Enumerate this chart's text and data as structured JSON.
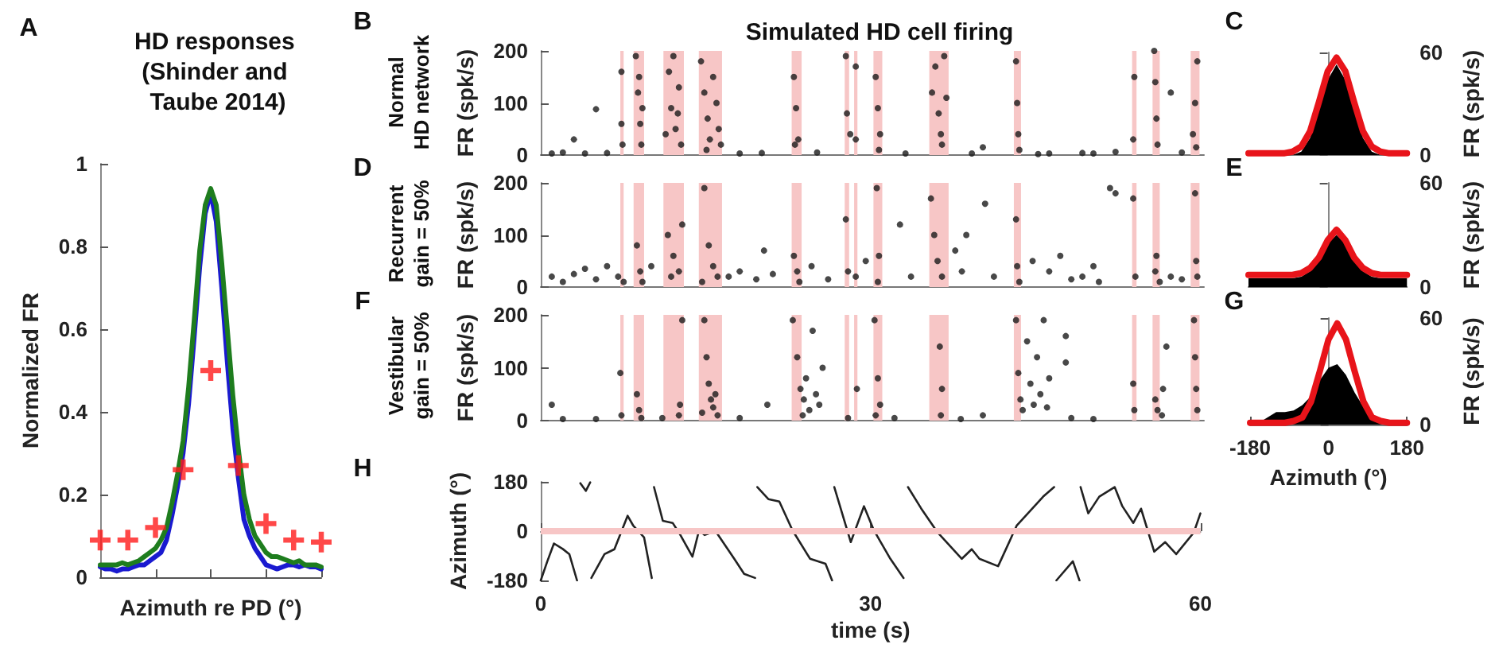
{
  "chart_data": [
    {
      "type": "line",
      "title": "HD responses (Shinder and Taube 2014)",
      "xlabel": "Azimuth re PD (°)",
      "ylabel": "Normalized FR",
      "annotations": [
        "A"
      ],
      "categories": [
        null,
        null,
        null,
        null,
        null,
        null,
        null,
        null,
        null,
        null,
        null,
        null,
        null,
        null,
        null,
        null,
        null,
        null,
        null,
        null,
        null,
        null,
        null,
        null,
        null,
        null,
        null,
        null,
        null,
        null,
        null,
        null,
        null,
        null,
        null,
        null,
        null,
        null,
        null,
        null,
        null
      ],
      "series": [
        {
          "color": "#1a1ad0",
          "values": [
            0.025,
            0.02,
            0.02,
            0.015,
            0.02,
            0.02,
            0.025,
            0.03,
            0.03,
            0.04,
            0.05,
            0.06,
            0.09,
            0.15,
            0.22,
            0.3,
            0.42,
            0.58,
            0.75,
            0.88,
            0.93,
            0.86,
            0.7,
            0.52,
            0.36,
            0.24,
            0.14,
            0.1,
            0.07,
            0.05,
            0.03,
            0.025,
            0.02,
            0.025,
            0.03,
            0.03,
            0.025,
            0.03,
            0.025,
            0.025,
            0.02
          ]
        },
        {
          "color": "#1e7d1e",
          "values": [
            0.03,
            0.03,
            0.03,
            0.03,
            0.035,
            0.03,
            0.035,
            0.04,
            0.05,
            0.06,
            0.07,
            0.09,
            0.12,
            0.18,
            0.25,
            0.33,
            0.46,
            0.62,
            0.79,
            0.9,
            0.94,
            0.9,
            0.76,
            0.6,
            0.44,
            0.31,
            0.2,
            0.14,
            0.1,
            0.08,
            0.06,
            0.05,
            0.05,
            0.045,
            0.04,
            0.035,
            0.04,
            0.03,
            0.03,
            0.03,
            0.025
          ]
        },
        {
          "type": "scatter",
          "marker": "cross",
          "color": "#ff1a1a",
          "values": [
            0.09,
            null,
            null,
            null,
            null,
            0.09,
            null,
            null,
            null,
            null,
            0.12,
            null,
            null,
            null,
            null,
            0.26,
            null,
            null,
            null,
            null,
            0.5,
            null,
            null,
            null,
            null,
            0.27,
            null,
            null,
            null,
            null,
            0.13,
            null,
            null,
            null,
            null,
            0.09,
            null,
            null,
            null,
            null,
            0.085
          ]
        }
      ],
      "ylim": [
        0,
        1
      ],
      "yticks": [
        0,
        0.2,
        0.4,
        0.6,
        0.8,
        1
      ],
      "tick_labels": "y",
      "marker": "none"
    },
    {
      "type": "scatter",
      "title": "Simulated HD cell firing",
      "ylabel": "FR (spk/s)",
      "annotations": [
        "B",
        "Normal\nHD network"
      ],
      "series": [
        {
          "color": "#1a1a1a",
          "x": [
            2,
            3,
            5,
            1,
            4,
            6,
            7.3,
            7.3,
            7.4,
            8.6,
            8.8,
            9.0,
            9.1,
            8.9,
            9.2,
            11.3,
            11.6,
            11.8,
            12.0,
            12.2,
            12.5,
            12.7,
            12.4,
            14.5,
            14.8,
            15.1,
            15.3,
            15.6,
            15.9,
            16.1,
            16.3,
            15.0,
            18,
            20,
            22.9,
            23.1,
            23.3,
            23.0,
            25,
            27.6,
            27.7,
            28.0,
            28.5,
            28.5,
            30.3,
            30.5,
            30.7,
            30.6,
            33,
            35.4,
            35.7,
            36.0,
            36.2,
            36.5,
            36.7,
            36.3,
            39,
            40,
            43.0,
            43.1,
            43.2,
            43.3,
            46,
            49,
            52,
            53.6,
            53.7,
            55.6,
            55.7,
            55.8,
            55.5,
            57,
            59.0,
            59.2,
            59.4,
            59.3,
            58,
            50,
            45
          ],
          "values": [
            5,
            30,
            88,
            3,
            3,
            4,
            60,
            160,
            20,
            190,
            120,
            60,
            20,
            150,
            90,
            40,
            160,
            90,
            190,
            50,
            130,
            20,
            80,
            180,
            120,
            70,
            30,
            150,
            100,
            50,
            20,
            10,
            3,
            4,
            150,
            90,
            30,
            20,
            5,
            190,
            80,
            40,
            170,
            30,
            150,
            90,
            40,
            10,
            3,
            120,
            170,
            80,
            40,
            190,
            110,
            20,
            3,
            15,
            180,
            100,
            40,
            10,
            3,
            4,
            6,
            30,
            150,
            140,
            70,
            20,
            200,
            120,
            40,
            100,
            180,
            15,
            5,
            3,
            2
          ]
        }
      ],
      "bands": [
        {
          "axis": "x",
          "from": 7.2,
          "to": 7.5,
          "color": "#f7c6c6"
        },
        {
          "axis": "x",
          "from": 8.4,
          "to": 9.35,
          "color": "#f7c6c6"
        },
        {
          "axis": "x",
          "from": 11.1,
          "to": 12.95,
          "color": "#f7c6c6"
        },
        {
          "axis": "x",
          "from": 14.3,
          "to": 16.4,
          "color": "#f7c6c6"
        },
        {
          "axis": "x",
          "from": 22.7,
          "to": 23.6,
          "color": "#f7c6c6"
        },
        {
          "axis": "x",
          "from": 27.5,
          "to": 27.9,
          "color": "#f7c6c6"
        },
        {
          "axis": "x",
          "from": 28.35,
          "to": 28.65,
          "color": "#f7c6c6"
        },
        {
          "axis": "x",
          "from": 30.1,
          "to": 30.9,
          "color": "#f7c6c6"
        },
        {
          "axis": "x",
          "from": 35.15,
          "to": 36.9,
          "color": "#f7c6c6"
        },
        {
          "axis": "x",
          "from": 42.8,
          "to": 43.45,
          "color": "#f7c6c6"
        },
        {
          "axis": "x",
          "from": 53.5,
          "to": 53.9,
          "color": "#f7c6c6"
        },
        {
          "axis": "x",
          "from": 55.35,
          "to": 56.0,
          "color": "#f7c6c6"
        },
        {
          "axis": "x",
          "from": 58.8,
          "to": 59.6,
          "color": "#f7c6c6"
        }
      ],
      "xlim": [
        0,
        60
      ],
      "ylim": [
        0,
        200
      ],
      "yticks": [
        0,
        100,
        200
      ],
      "tick_labels": "y",
      "marker": "circle"
    },
    {
      "type": "area",
      "ylabel": "FR (spk/s)",
      "annotations": [
        "C"
      ],
      "x": [
        -180,
        -160,
        -140,
        -120,
        -100,
        -80,
        -60,
        -40,
        -20,
        0,
        20,
        40,
        60,
        80,
        100,
        120,
        140,
        160,
        180
      ],
      "series": [
        {
          "color": "#000000",
          "values": [
            0,
            0,
            0,
            0,
            0,
            0,
            2,
            10,
            26,
            44,
            53,
            44,
            26,
            10,
            2,
            0,
            0,
            0,
            0
          ]
        },
        {
          "type": "line",
          "color": "#e8141a",
          "values": [
            1,
            1,
            1,
            1,
            1,
            2,
            5,
            14,
            31,
            49,
            57,
            49,
            31,
            14,
            5,
            2,
            1,
            1,
            1
          ]
        }
      ],
      "xlim": [
        -180,
        180
      ],
      "ylim": [
        0,
        60
      ],
      "yticks": [
        0,
        60
      ],
      "tick_labels": "y",
      "marker": "none"
    },
    {
      "type": "scatter",
      "ylabel": "FR (spk/s)",
      "annotations": [
        "D",
        "Recurrent\ngain = 50%"
      ],
      "series": [
        {
          "color": "#1a1a1a",
          "x": [
            1,
            2,
            3,
            4,
            5,
            6,
            7.0,
            7.5,
            8.7,
            9.0,
            9.2,
            10,
            11.5,
            12.0,
            12.5,
            12.8,
            11.8,
            14.8,
            15.2,
            15.6,
            16.0,
            14.6,
            17,
            18,
            19.5,
            20.2,
            21,
            22.9,
            23.2,
            23.4,
            24.5,
            26,
            27.6,
            27.8,
            28.5,
            29.4,
            30.4,
            30.6,
            30.5,
            32.5,
            33.5,
            35.3,
            35.6,
            35.9,
            36.3,
            37.5,
            38.5,
            38.1,
            40.2,
            41,
            43.0,
            43.1,
            43.3,
            44.5,
            46,
            47,
            48,
            49,
            50,
            51.5,
            52,
            50.5,
            53.6,
            53.8,
            55.6,
            55.7,
            56,
            57,
            58,
            59.2,
            59.3,
            59.4
          ],
          "values": [
            20,
            10,
            25,
            35,
            15,
            40,
            20,
            10,
            80,
            30,
            10,
            40,
            100,
            60,
            30,
            120,
            20,
            190,
            80,
            40,
            20,
            10,
            20,
            30,
            15,
            70,
            25,
            60,
            30,
            10,
            40,
            15,
            130,
            30,
            20,
            50,
            190,
            60,
            10,
            120,
            20,
            170,
            100,
            50,
            20,
            70,
            100,
            30,
            160,
            20,
            130,
            40,
            10,
            50,
            30,
            60,
            15,
            20,
            40,
            190,
            180,
            10,
            170,
            20,
            30,
            60,
            10,
            20,
            15,
            180,
            50,
            20
          ]
        }
      ],
      "bands": [
        {
          "axis": "x",
          "from": 7.2,
          "to": 7.5,
          "color": "#f7c6c6"
        },
        {
          "axis": "x",
          "from": 8.4,
          "to": 9.35,
          "color": "#f7c6c6"
        },
        {
          "axis": "x",
          "from": 11.1,
          "to": 12.95,
          "color": "#f7c6c6"
        },
        {
          "axis": "x",
          "from": 14.3,
          "to": 16.4,
          "color": "#f7c6c6"
        },
        {
          "axis": "x",
          "from": 22.7,
          "to": 23.6,
          "color": "#f7c6c6"
        },
        {
          "axis": "x",
          "from": 27.5,
          "to": 27.9,
          "color": "#f7c6c6"
        },
        {
          "axis": "x",
          "from": 28.35,
          "to": 28.65,
          "color": "#f7c6c6"
        },
        {
          "axis": "x",
          "from": 30.1,
          "to": 30.9,
          "color": "#f7c6c6"
        },
        {
          "axis": "x",
          "from": 35.15,
          "to": 36.9,
          "color": "#f7c6c6"
        },
        {
          "axis": "x",
          "from": 42.8,
          "to": 43.45,
          "color": "#f7c6c6"
        },
        {
          "axis": "x",
          "from": 53.5,
          "to": 53.9,
          "color": "#f7c6c6"
        },
        {
          "axis": "x",
          "from": 55.35,
          "to": 56.0,
          "color": "#f7c6c6"
        },
        {
          "axis": "x",
          "from": 58.8,
          "to": 59.6,
          "color": "#f7c6c6"
        }
      ],
      "xlim": [
        0,
        60
      ],
      "ylim": [
        0,
        200
      ],
      "yticks": [
        0,
        100,
        200
      ],
      "tick_labels": "y",
      "marker": "circle"
    },
    {
      "type": "area",
      "ylabel": "FR (spk/s)",
      "annotations": [
        "E"
      ],
      "x": [
        -180,
        -160,
        -140,
        -120,
        -100,
        -80,
        -60,
        -40,
        -20,
        0,
        20,
        40,
        60,
        80,
        100,
        120,
        140,
        160,
        180
      ],
      "series": [
        {
          "color": "#000000",
          "values": [
            5,
            5,
            5,
            5,
            5,
            5,
            6,
            9,
            15,
            25,
            30,
            25,
            15,
            9,
            6,
            5,
            5,
            5,
            5
          ]
        },
        {
          "type": "line",
          "color": "#e8141a",
          "values": [
            7,
            7,
            7,
            7,
            7,
            7,
            8,
            11,
            17,
            27,
            33,
            27,
            17,
            11,
            8,
            7,
            7,
            7,
            7
          ]
        }
      ],
      "xlim": [
        -180,
        180
      ],
      "ylim": [
        0,
        60
      ],
      "yticks": [
        0,
        60
      ],
      "tick_labels": "y",
      "marker": "none"
    },
    {
      "type": "scatter",
      "ylabel": "FR (spk/s)",
      "annotations": [
        "F",
        "Vestibular\ngain = 50%"
      ],
      "series": [
        {
          "color": "#1a1a1a",
          "x": [
            1,
            2,
            5,
            7.2,
            7.3,
            8.7,
            8.9,
            9.1,
            11,
            12.5,
            12.8,
            12.6,
            14.8,
            15.0,
            15.2,
            15.4,
            15.6,
            15.8,
            14.6,
            16.0,
            18,
            20.5,
            22.8,
            23.2,
            23.5,
            23.8,
            24.0,
            24.3,
            24.6,
            24.9,
            25.2,
            25.5,
            23.7,
            27.8,
            28.6,
            30.2,
            30.5,
            30.7,
            30.3,
            32,
            36.1,
            36.3,
            36.2,
            38,
            40,
            43.0,
            43.2,
            43.4,
            43.6,
            44.0,
            44.3,
            44.6,
            44.9,
            45.2,
            45.5,
            45.8,
            46.0,
            47.5,
            47.5,
            48,
            50,
            53.6,
            53.7,
            55.6,
            55.8,
            56.3,
            56.6,
            56.2,
            59.1,
            59.2,
            59.3,
            59.4
          ],
          "values": [
            30,
            3,
            3,
            90,
            10,
            50,
            20,
            5,
            5,
            10,
            190,
            30,
            190,
            120,
            70,
            40,
            25,
            50,
            15,
            10,
            5,
            30,
            190,
            120,
            60,
            40,
            80,
            20,
            170,
            50,
            30,
            100,
            10,
            5,
            60,
            190,
            80,
            30,
            10,
            5,
            140,
            60,
            10,
            3,
            10,
            190,
            90,
            40,
            20,
            150,
            70,
            30,
            120,
            50,
            190,
            25,
            80,
            160,
            110,
            5,
            3,
            70,
            20,
            40,
            20,
            60,
            140,
            10,
            190,
            120,
            60,
            20
          ]
        }
      ],
      "bands": [
        {
          "axis": "x",
          "from": 7.2,
          "to": 7.5,
          "color": "#f7c6c6"
        },
        {
          "axis": "x",
          "from": 8.4,
          "to": 9.35,
          "color": "#f7c6c6"
        },
        {
          "axis": "x",
          "from": 11.1,
          "to": 12.95,
          "color": "#f7c6c6"
        },
        {
          "axis": "x",
          "from": 14.3,
          "to": 16.4,
          "color": "#f7c6c6"
        },
        {
          "axis": "x",
          "from": 22.7,
          "to": 23.6,
          "color": "#f7c6c6"
        },
        {
          "axis": "x",
          "from": 27.5,
          "to": 27.9,
          "color": "#f7c6c6"
        },
        {
          "axis": "x",
          "from": 28.35,
          "to": 28.65,
          "color": "#f7c6c6"
        },
        {
          "axis": "x",
          "from": 30.1,
          "to": 30.9,
          "color": "#f7c6c6"
        },
        {
          "axis": "x",
          "from": 35.15,
          "to": 36.9,
          "color": "#f7c6c6"
        },
        {
          "axis": "x",
          "from": 42.8,
          "to": 43.45,
          "color": "#f7c6c6"
        },
        {
          "axis": "x",
          "from": 53.5,
          "to": 53.9,
          "color": "#f7c6c6"
        },
        {
          "axis": "x",
          "from": 55.35,
          "to": 56.0,
          "color": "#f7c6c6"
        },
        {
          "axis": "x",
          "from": 58.8,
          "to": 59.6,
          "color": "#f7c6c6"
        }
      ],
      "xlim": [
        0,
        60
      ],
      "ylim": [
        0,
        200
      ],
      "yticks": [
        0,
        100,
        200
      ],
      "tick_labels": "y",
      "marker": "circle"
    },
    {
      "type": "area",
      "xlabel": "Azimuth (°)",
      "ylabel": "FR (spk/s)",
      "annotations": [
        "G"
      ],
      "x": [
        -180,
        -160,
        -140,
        -120,
        -100,
        -80,
        -60,
        -40,
        -20,
        0,
        20,
        40,
        60,
        80,
        100,
        120,
        140,
        160,
        180
      ],
      "series": [
        {
          "color": "#000000",
          "values": [
            0,
            1,
            4,
            7,
            7,
            8,
            11,
            16,
            25,
            32,
            34,
            28,
            18,
            10,
            5,
            3,
            2,
            1,
            0
          ]
        },
        {
          "type": "line",
          "color": "#e8141a",
          "values": [
            1,
            1,
            1,
            1,
            1,
            2,
            4,
            13,
            30,
            48,
            57,
            48,
            30,
            13,
            4,
            2,
            1,
            1,
            1
          ]
        }
      ],
      "xlim": [
        -180,
        180
      ],
      "xticks": [
        -180,
        0,
        180
      ],
      "ylim": [
        0,
        60
      ],
      "yticks": [
        0,
        60
      ],
      "marker": "none"
    },
    {
      "type": "line",
      "xlabel": "time (s)",
      "ylabel": "Azimuth (°)",
      "annotations": [
        "H"
      ],
      "series": [
        {
          "color": "#222222",
          "x": [
            0,
            0.6,
            1.2,
            2,
            2.6,
            3.3,
            3.45,
            3.6,
            4.1,
            4.5,
            4.55,
            4.6,
            5.8,
            6.7,
            7.9,
            8.4,
            9.4,
            10.1,
            10.2,
            10.3,
            11.1,
            12.0,
            12.7,
            13.8,
            14.4,
            14.9,
            15.9,
            17.6,
            18.5,
            19.5,
            19.6,
            19.7,
            20.7,
            21.7,
            22.9,
            24.5,
            25.9,
            26.5,
            26.6,
            26.7,
            28.2,
            29.4,
            30.3,
            31.8,
            33,
            33.2,
            33.4,
            34.6,
            36.1,
            38.3,
            39.2,
            39.9,
            41.6,
            43.3,
            45.7,
            46.7,
            46.85,
            46.9,
            48.4,
            49.0,
            49.05,
            49.1,
            49.8,
            50.8,
            52.2,
            52.9,
            53.9,
            54.6,
            55.8,
            56.8,
            57.8,
            59.4,
            60
          ],
          "values": [
            -180,
            -110,
            -45,
            -65,
            -84,
            -180,
            null,
            175,
            147,
            178,
            null,
            -171,
            -84,
            -66,
            56,
            21,
            -23,
            -171,
            null,
            161,
            38,
            30,
            -14,
            -93,
            3,
            -14,
            0,
            -101,
            -156,
            -171,
            null,
            161,
            117,
            108,
            3,
            -101,
            -119,
            -180,
            null,
            161,
            -40,
            91,
            3,
            -101,
            -171,
            null,
            161,
            83,
            -5,
            -101,
            -66,
            -101,
            -128,
            21,
            126,
            161,
            null,
            -180,
            -110,
            -180,
            null,
            161,
            65,
            126,
            161,
            91,
            30,
            82,
            -75,
            -40,
            -84,
            -5,
            65
          ]
        }
      ],
      "ref_lines": [
        {
          "axis": "y",
          "value": 0,
          "color": "#f7c6c6"
        }
      ],
      "xlim": [
        0,
        60
      ],
      "xticks": [
        0,
        30,
        60
      ],
      "ylim": [
        -180,
        180
      ],
      "yticks": [
        -180,
        0,
        180
      ],
      "marker": "none"
    }
  ]
}
